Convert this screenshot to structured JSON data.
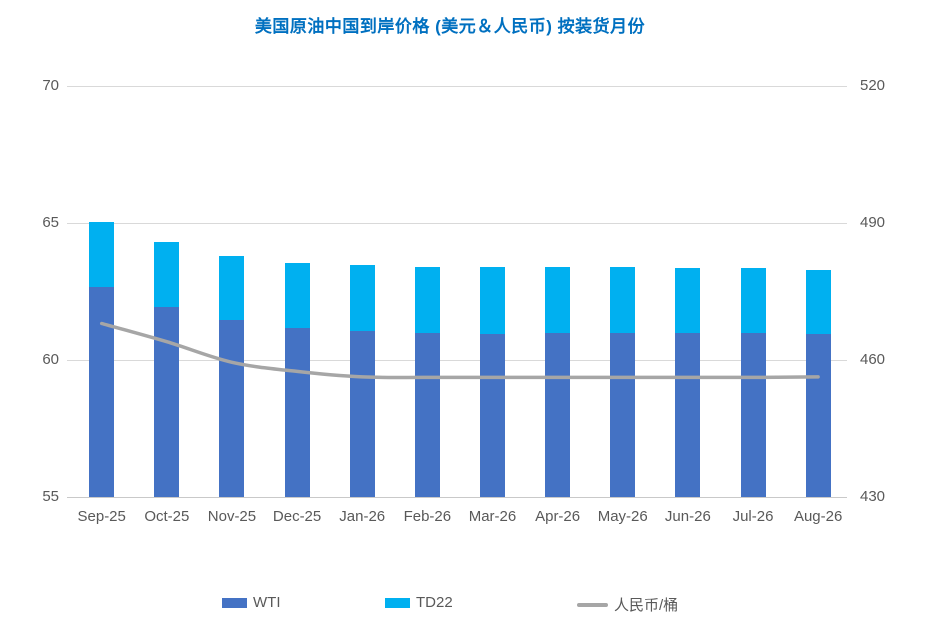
{
  "title": "美国原油中国到岸价格 (美元＆人民币) 按装货月份",
  "colors": {
    "title": "#0070C0",
    "wti_bar": "#4472C4",
    "td22_bar": "#00B0F0",
    "rmb_line": "#A6A6A6",
    "axis_text": "#595959",
    "gridline": "#D9D9D9"
  },
  "legend": {
    "items": [
      {
        "label": "WTI",
        "swatch": "bar",
        "color": "#4472C4"
      },
      {
        "label": "TD22",
        "swatch": "bar",
        "color": "#00B0F0"
      },
      {
        "label": "人民币/桶",
        "swatch": "line",
        "color": "#A6A6A6"
      }
    ]
  },
  "chart_data": {
    "type": "combo-stacked-bar-line",
    "title": "美国原油中国到岸价格 (美元＆人民币) 按装货月份",
    "categories": [
      "Sep-25",
      "Oct-25",
      "Nov-25",
      "Dec-25",
      "Jan-26",
      "Feb-26",
      "Mar-26",
      "Apr-26",
      "May-26",
      "Jun-26",
      "Jul-26",
      "Aug-26"
    ],
    "series": [
      {
        "name": "WTI",
        "type": "bar",
        "stack": "usd",
        "axis": "left",
        "color": "#4472C4",
        "values": [
          62.65,
          61.95,
          61.45,
          61.15,
          61.05,
          61.0,
          60.95,
          61.0,
          61.0,
          61.0,
          61.0,
          60.95
        ]
      },
      {
        "name": "TD22",
        "type": "bar",
        "stack": "usd",
        "axis": "left",
        "color": "#00B0F0",
        "values": [
          2.4,
          2.35,
          2.35,
          2.4,
          2.4,
          2.4,
          2.45,
          2.4,
          2.4,
          2.35,
          2.35,
          2.35
        ]
      },
      {
        "name": "人民币/桶",
        "type": "line",
        "axis": "right",
        "color": "#A6A6A6",
        "values": [
          468,
          464,
          459.5,
          457.5,
          456.3,
          456.2,
          456.2,
          456.2,
          456.2,
          456.2,
          456.2,
          456.3
        ]
      }
    ],
    "left_axis": {
      "min": 55,
      "max": 70,
      "ticks": [
        70,
        65,
        60,
        55
      ]
    },
    "right_axis": {
      "min": 430,
      "max": 520,
      "ticks": [
        520,
        490,
        460,
        430
      ]
    },
    "grid": true,
    "legend_position": "bottom"
  }
}
